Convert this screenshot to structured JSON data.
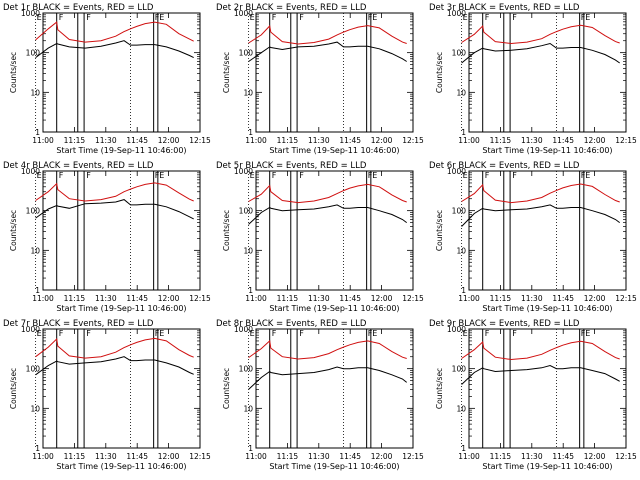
{
  "figure": {
    "background": "#ffffff",
    "colors": {
      "events": "#000000",
      "lld": "#d01010",
      "axis": "#000000"
    },
    "shared": {
      "xlabel": "Start Time (19-Sep-11 10:46:00)",
      "ylabel": "Counts/sec",
      "x_tick_labels": [
        "11:00",
        "11:15",
        "11:30",
        "11:45",
        "12:00",
        "12:15"
      ],
      "y_tick_labels": [
        "1",
        "10",
        "100",
        "1000"
      ],
      "xlim": [
        17.5,
        92
      ],
      "ylim": [
        1,
        1000
      ],
      "yscale": "log",
      "dotted_lines_at": [
        14,
        59
      ],
      "solid_lines_at": [
        24,
        34,
        37,
        70,
        72
      ],
      "markers": [
        {
          "x": 14.5,
          "label": "E"
        },
        {
          "x": 25,
          "label": "F"
        },
        {
          "x": 38,
          "label": "F"
        },
        {
          "x": 70.5,
          "label": "FE"
        }
      ]
    }
  },
  "chart_data": [
    {
      "type": "line",
      "title": "Det 1r BLACK = Events, RED = LLD",
      "x": [
        14,
        20,
        24,
        24.5,
        30,
        37.5,
        45,
        52,
        56,
        59,
        62,
        66,
        70.5,
        76,
        82,
        87,
        89
      ],
      "series": [
        {
          "name": "RED = LLD",
          "values": [
            210,
            400,
            590,
            380,
            215,
            185,
            200,
            260,
            340,
            400,
            460,
            540,
            590,
            520,
            300,
            220,
            195
          ]
        },
        {
          "name": "BLACK = Events",
          "values": [
            75,
            130,
            170,
            165,
            140,
            130,
            145,
            175,
            200,
            155,
            155,
            160,
            160,
            140,
            110,
            85,
            75
          ]
        }
      ]
    },
    {
      "type": "line",
      "title": "Det 2r BLACK = Events, RED = LLD",
      "x": [
        14,
        20,
        24,
        24.5,
        30,
        37.5,
        45,
        52,
        56,
        59,
        62,
        66,
        70.5,
        76,
        82,
        87,
        89
      ],
      "series": [
        {
          "name": "RED = LLD",
          "values": [
            175,
            280,
            470,
            330,
            190,
            165,
            180,
            220,
            280,
            330,
            380,
            440,
            480,
            420,
            260,
            185,
            170
          ]
        },
        {
          "name": "BLACK = Events",
          "values": [
            60,
            100,
            140,
            135,
            120,
            140,
            145,
            165,
            185,
            140,
            140,
            145,
            145,
            125,
            95,
            70,
            60
          ]
        }
      ]
    },
    {
      "type": "line",
      "title": "Det 3r BLACK = Events, RED = LLD",
      "x": [
        14,
        20,
        24,
        24.5,
        30,
        37.5,
        45,
        52,
        56,
        59,
        62,
        66,
        70.5,
        76,
        82,
        87,
        89
      ],
      "series": [
        {
          "name": "RED = LLD",
          "values": [
            180,
            290,
            470,
            330,
            190,
            170,
            185,
            225,
            290,
            340,
            390,
            450,
            490,
            430,
            270,
            190,
            175
          ]
        },
        {
          "name": "BLACK = Events",
          "values": [
            55,
            100,
            130,
            125,
            110,
            115,
            125,
            150,
            170,
            130,
            130,
            135,
            135,
            115,
            90,
            65,
            55
          ]
        }
      ]
    },
    {
      "type": "line",
      "title": "Det 4r BLACK = Events, RED = LLD",
      "x": [
        14,
        20,
        24,
        24.5,
        30,
        37.5,
        45,
        52,
        56,
        59,
        62,
        66,
        70.5,
        76,
        82,
        87,
        89
      ],
      "series": [
        {
          "name": "RED = LLD",
          "values": [
            180,
            300,
            480,
            340,
            200,
            175,
            190,
            230,
            300,
            350,
            400,
            460,
            500,
            440,
            280,
            195,
            175
          ]
        },
        {
          "name": "BLACK = Events",
          "values": [
            65,
            110,
            135,
            130,
            115,
            150,
            155,
            165,
            190,
            140,
            140,
            145,
            145,
            125,
            95,
            70,
            62
          ]
        }
      ]
    },
    {
      "type": "line",
      "title": "Det 5r BLACK = Events, RED = LLD",
      "x": [
        14,
        20,
        24,
        24.5,
        30,
        37.5,
        45,
        52,
        56,
        59,
        62,
        66,
        70.5,
        76,
        82,
        87,
        89
      ],
      "series": [
        {
          "name": "RED = LLD",
          "values": [
            170,
            260,
            430,
            300,
            180,
            160,
            175,
            215,
            270,
            320,
            370,
            420,
            460,
            400,
            250,
            180,
            165
          ]
        },
        {
          "name": "BLACK = Events",
          "values": [
            45,
            90,
            120,
            115,
            100,
            105,
            110,
            125,
            140,
            115,
            115,
            120,
            120,
            100,
            80,
            60,
            50
          ]
        }
      ]
    },
    {
      "type": "line",
      "title": "Det 6r BLACK = Events, RED = LLD",
      "x": [
        14,
        20,
        24,
        24.5,
        30,
        37.5,
        45,
        52,
        56,
        59,
        62,
        66,
        70.5,
        76,
        82,
        87,
        89
      ],
      "series": [
        {
          "name": "RED = LLD",
          "values": [
            170,
            270,
            450,
            320,
            185,
            160,
            175,
            215,
            275,
            325,
            375,
            430,
            470,
            410,
            255,
            180,
            165
          ]
        },
        {
          "name": "BLACK = Events",
          "values": [
            40,
            85,
            115,
            110,
            100,
            105,
            110,
            125,
            140,
            115,
            115,
            120,
            120,
            100,
            80,
            60,
            50
          ]
        }
      ]
    },
    {
      "type": "line",
      "title": "Det 7r BLACK = Events, RED = LLD",
      "x": [
        14,
        20,
        24,
        24.5,
        30,
        37.5,
        45,
        52,
        56,
        59,
        62,
        66,
        70.5,
        76,
        82,
        87,
        89
      ],
      "series": [
        {
          "name": "RED = LLD",
          "values": [
            200,
            350,
            560,
            370,
            210,
            185,
            200,
            260,
            340,
            400,
            460,
            530,
            580,
            500,
            300,
            215,
            195
          ]
        },
        {
          "name": "BLACK = Events",
          "values": [
            70,
            120,
            155,
            150,
            130,
            140,
            150,
            175,
            200,
            160,
            160,
            165,
            165,
            140,
            110,
            80,
            72
          ]
        }
      ]
    },
    {
      "type": "line",
      "title": "Det 8r BLACK = Events, RED = LLD",
      "x": [
        14,
        20,
        24,
        24.5,
        30,
        37.5,
        45,
        52,
        56,
        59,
        62,
        66,
        70.5,
        76,
        82,
        87,
        89
      ],
      "series": [
        {
          "name": "RED = LLD",
          "values": [
            190,
            320,
            500,
            330,
            200,
            175,
            190,
            240,
            300,
            350,
            400,
            460,
            500,
            430,
            270,
            195,
            180
          ]
        },
        {
          "name": "BLACK = Events",
          "values": [
            30,
            60,
            85,
            80,
            70,
            75,
            80,
            95,
            110,
            100,
            100,
            105,
            105,
            90,
            70,
            55,
            45
          ]
        }
      ]
    },
    {
      "type": "line",
      "title": "Det 9r BLACK = Events, RED = LLD",
      "x": [
        14,
        20,
        24,
        24.5,
        30,
        37.5,
        45,
        52,
        56,
        59,
        62,
        66,
        70.5,
        76,
        82,
        87,
        89
      ],
      "series": [
        {
          "name": "RED = LLD",
          "values": [
            180,
            300,
            470,
            330,
            195,
            170,
            185,
            230,
            290,
            340,
            390,
            450,
            490,
            430,
            270,
            190,
            175
          ]
        },
        {
          "name": "BLACK = Events",
          "values": [
            40,
            80,
            105,
            100,
            85,
            90,
            95,
            105,
            120,
            100,
            100,
            105,
            105,
            90,
            75,
            55,
            48
          ]
        }
      ]
    }
  ]
}
